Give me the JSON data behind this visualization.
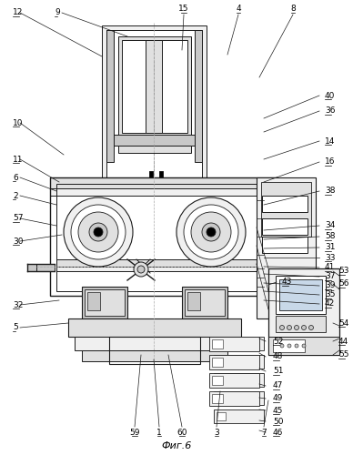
{
  "title": "Фиг.6",
  "fig_width": 3.88,
  "fig_height": 5.0,
  "dpi": 100,
  "bg_color": "#ffffff",
  "line_color": "#1a1a1a",
  "text_color": "#000000",
  "font_size_labels": 6.5,
  "font_size_title": 8,
  "gray1": "#c8c8c8",
  "gray2": "#e0e0e0",
  "gray3": "#f0f0f0"
}
